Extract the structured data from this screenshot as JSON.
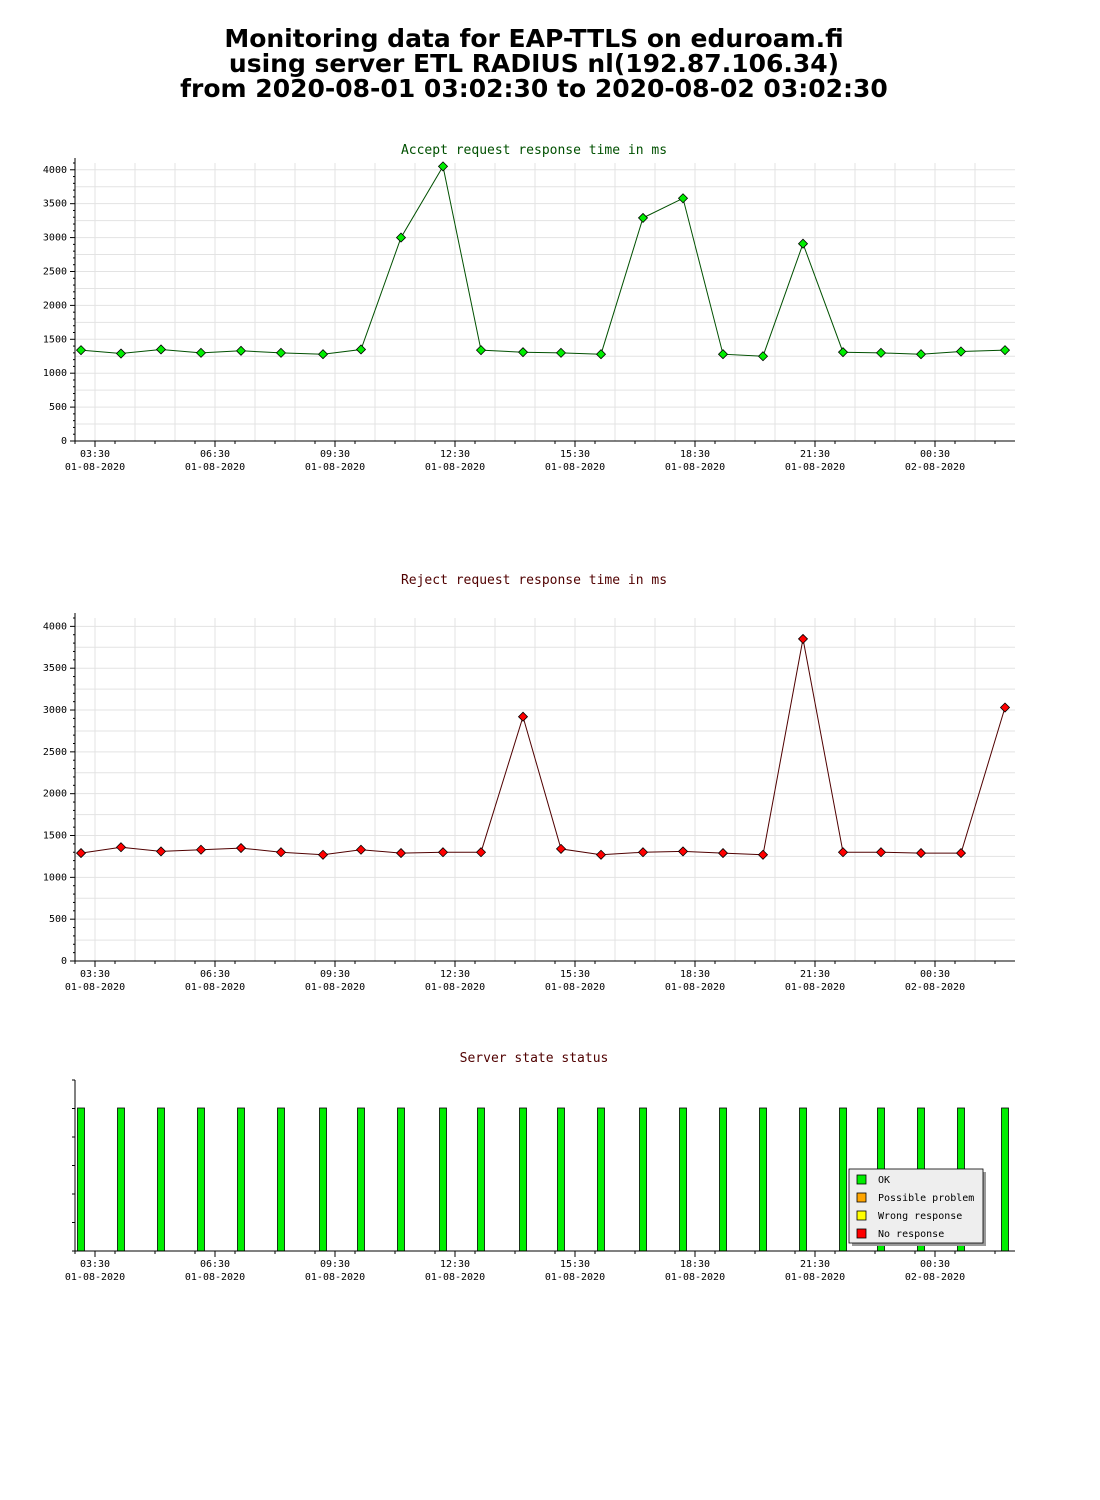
{
  "header": {
    "title_lines": [
      "Monitoring data for EAP-TTLS on eduroam.fi",
      "using server ETL RADIUS nl(192.87.106.34)",
      "from 2020-08-01 03:02:30 to 2020-08-02 03:02:30"
    ]
  },
  "colors": {
    "ok": "#00ee00",
    "possible_problem": "#ffa500",
    "wrong_response": "#ffff00",
    "no_response": "#ff0000",
    "accept_title": "#005000",
    "reject_title": "#500000",
    "status_title": "#500000"
  },
  "chart_data": [
    {
      "type": "line",
      "title": "Accept request response time in ms",
      "x_tick_labels": [
        [
          "03:30",
          "01-08-2020"
        ],
        [
          "06:30",
          "01-08-2020"
        ],
        [
          "09:30",
          "01-08-2020"
        ],
        [
          "12:30",
          "01-08-2020"
        ],
        [
          "15:30",
          "01-08-2020"
        ],
        [
          "18:30",
          "01-08-2020"
        ],
        [
          "21:30",
          "01-08-2020"
        ],
        [
          "00:30",
          "02-08-2020"
        ]
      ],
      "x_range_hours": [
        3.0,
        26.5
      ],
      "y_ticks": [
        0,
        500,
        1000,
        1500,
        2000,
        2500,
        3000,
        3500,
        4000
      ],
      "ylim": [
        0,
        4100
      ],
      "grid": true,
      "series": [
        {
          "marker_color": "#00ee00",
          "line_color": "#005000",
          "x": [
            3.15,
            4.15,
            5.15,
            6.15,
            7.15,
            8.15,
            9.2,
            10.15,
            11.15,
            12.2,
            13.15,
            14.2,
            15.15,
            16.15,
            17.2,
            18.2,
            19.2,
            20.2,
            21.2,
            22.2,
            23.15,
            24.15,
            25.15,
            26.25
          ],
          "y": [
            1340,
            1290,
            1350,
            1300,
            1330,
            1300,
            1280,
            1350,
            3000,
            4050,
            1340,
            1310,
            1300,
            1280,
            3290,
            3580,
            1280,
            1250,
            2910,
            1310,
            1300,
            1280,
            1320,
            1340
          ]
        }
      ]
    },
    {
      "type": "line",
      "title": "Reject request response time in ms",
      "x_tick_labels": [
        [
          "03:30",
          "01-08-2020"
        ],
        [
          "06:30",
          "01-08-2020"
        ],
        [
          "09:30",
          "01-08-2020"
        ],
        [
          "12:30",
          "01-08-2020"
        ],
        [
          "15:30",
          "01-08-2020"
        ],
        [
          "18:30",
          "01-08-2020"
        ],
        [
          "21:30",
          "01-08-2020"
        ],
        [
          "00:30",
          "02-08-2020"
        ]
      ],
      "x_range_hours": [
        3.0,
        26.5
      ],
      "y_ticks": [
        0,
        500,
        1000,
        1500,
        2000,
        2500,
        3000,
        3500,
        4000
      ],
      "ylim": [
        0,
        4100
      ],
      "grid": true,
      "series": [
        {
          "marker_color": "#ff0000",
          "line_color": "#500000",
          "x": [
            3.15,
            4.15,
            5.15,
            6.15,
            7.15,
            8.15,
            9.2,
            10.15,
            11.15,
            12.2,
            13.15,
            14.2,
            15.15,
            16.15,
            17.2,
            18.2,
            19.2,
            20.2,
            21.2,
            22.2,
            23.15,
            24.15,
            25.15,
            26.25
          ],
          "y": [
            1290,
            1360,
            1310,
            1330,
            1350,
            1300,
            1270,
            1330,
            1290,
            1300,
            1300,
            2920,
            1340,
            1270,
            1300,
            1310,
            1290,
            1270,
            3850,
            1300,
            1300,
            1290,
            1290,
            3030
          ]
        }
      ]
    },
    {
      "type": "bar",
      "title": "Server state status",
      "x_tick_labels": [
        [
          "03:30",
          "01-08-2020"
        ],
        [
          "06:30",
          "01-08-2020"
        ],
        [
          "09:30",
          "01-08-2020"
        ],
        [
          "12:30",
          "01-08-2020"
        ],
        [
          "15:30",
          "01-08-2020"
        ],
        [
          "18:30",
          "01-08-2020"
        ],
        [
          "21:30",
          "01-08-2020"
        ],
        [
          "00:30",
          "02-08-2020"
        ]
      ],
      "x_range_hours": [
        3.0,
        26.5
      ],
      "x": [
        3.15,
        4.15,
        5.15,
        6.15,
        7.15,
        8.15,
        9.2,
        10.15,
        11.15,
        12.2,
        13.15,
        14.2,
        15.15,
        16.15,
        17.2,
        18.2,
        19.2,
        20.2,
        21.2,
        22.2,
        23.15,
        24.15,
        25.15,
        26.25
      ],
      "status": [
        "OK",
        "OK",
        "OK",
        "OK",
        "OK",
        "OK",
        "OK",
        "OK",
        "OK",
        "OK",
        "OK",
        "OK",
        "OK",
        "OK",
        "OK",
        "OK",
        "OK",
        "OK",
        "OK",
        "OK",
        "OK",
        "OK",
        "OK",
        "OK"
      ],
      "legend": {
        "placement": "bottom-right",
        "entries": [
          {
            "label": "OK",
            "color": "#00ee00"
          },
          {
            "label": "Possible problem",
            "color": "#ffa500"
          },
          {
            "label": "Wrong response",
            "color": "#ffff00"
          },
          {
            "label": "No response",
            "color": "#ff0000"
          }
        ]
      }
    }
  ]
}
